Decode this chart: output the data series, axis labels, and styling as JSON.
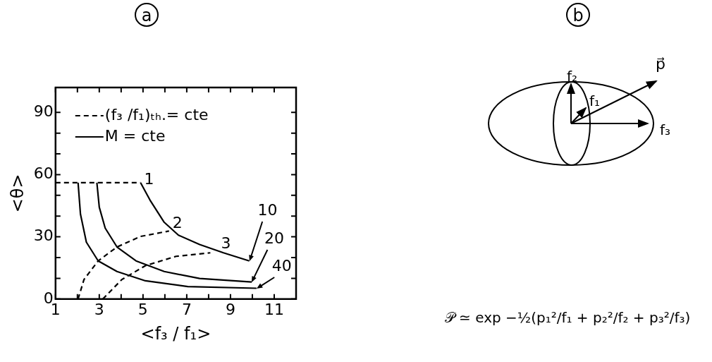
{
  "chart_data": [
    {
      "type": "line",
      "title": "a",
      "xlabel": "<f₃ / f₁>",
      "ylabel": "<θ>",
      "xlim": [
        1,
        12
      ],
      "ylim": [
        0,
        102
      ],
      "xticks": [
        1,
        {
          "value": 2,
          "label": null
        },
        3,
        {
          "value": 4,
          "label": null
        },
        5,
        {
          "value": 6,
          "label": null
        },
        7,
        {
          "value": 8,
          "label": null
        },
        9,
        {
          "value": 10,
          "label": null
        },
        11
      ],
      "yticks": [
        0,
        {
          "value": 10,
          "label": null
        },
        {
          "value": 20,
          "label": null
        },
        30,
        {
          "value": 40,
          "label": null
        },
        {
          "value": 50,
          "label": null
        },
        60,
        {
          "value": 70,
          "label": null
        },
        {
          "value": 80,
          "label": null
        },
        90
      ],
      "legend": "top left",
      "marker": "none",
      "series": [
        {
          "name": "(f₃ /f₁)ₜₕ.= cte",
          "color": "#000000",
          "line_style": "dashed",
          "x": [
            1,
            4.89
          ],
          "values": [
            56.1,
            56.1
          ]
        },
        {
          "color": "#000000",
          "line_style": "dashed",
          "x": [
            2.03,
            2.3,
            2.95,
            3.81,
            4.89,
            6.19
          ],
          "values": [
            0,
            9.4,
            18.4,
            25.1,
            30.2,
            32.8
          ]
        },
        {
          "color": "#000000",
          "line_style": "dashed",
          "x": [
            3.16,
            4.03,
            5.11,
            6.51,
            8.08
          ],
          "values": [
            0,
            9.4,
            16.1,
            20.6,
            22.3
          ]
        },
        {
          "name": "M = cte",
          "color": "#000000",
          "line_style": "solid",
          "x": [
            4.89,
            5.32,
            5.97,
            6.62,
            7.59,
            8.68,
            9.86
          ],
          "values": [
            56.1,
            47.7,
            37,
            30.8,
            26.3,
            22.3,
            18.4
          ]
        },
        {
          "color": "#000000",
          "line_style": "solid",
          "x": [
            2.89,
            3.0,
            3.27,
            3.81,
            4.68,
            5.97,
            7.59,
            9.97
          ],
          "values": [
            56.1,
            44.3,
            34.2,
            25.1,
            18.4,
            13.3,
            9.9,
            8.2
          ]
        },
        {
          "color": "#000000",
          "line_style": "solid",
          "x": [
            2.03,
            2.14,
            2.41,
            2.95,
            3.81,
            5.11,
            7.05,
            10.19
          ],
          "values": [
            56.1,
            40.9,
            27.4,
            18.4,
            13.3,
            8.8,
            6.0,
            5.2
          ]
        }
      ],
      "annotations": [
        {
          "text": "1",
          "x": 4.89,
          "y": 56.1
        },
        {
          "text": "2",
          "x": 6.19,
          "y": 32.8
        },
        {
          "text": "3",
          "x": 8.08,
          "y": 22.3
        },
        {
          "text": "10",
          "x": 9.86,
          "y": 18.4
        },
        {
          "text": "20",
          "x": 9.97,
          "y": 8.2
        },
        {
          "text": "40",
          "x": 10.19,
          "y": 5.2
        }
      ]
    },
    {
      "type": "other",
      "title": "b",
      "annotations": [
        "f₂",
        "f₁",
        "f₃",
        "p⃗",
        "𝒫 ≃ exp −½(p₁²/f₁ + p₂²/f₂ + p₃²/f₃)"
      ]
    }
  ]
}
